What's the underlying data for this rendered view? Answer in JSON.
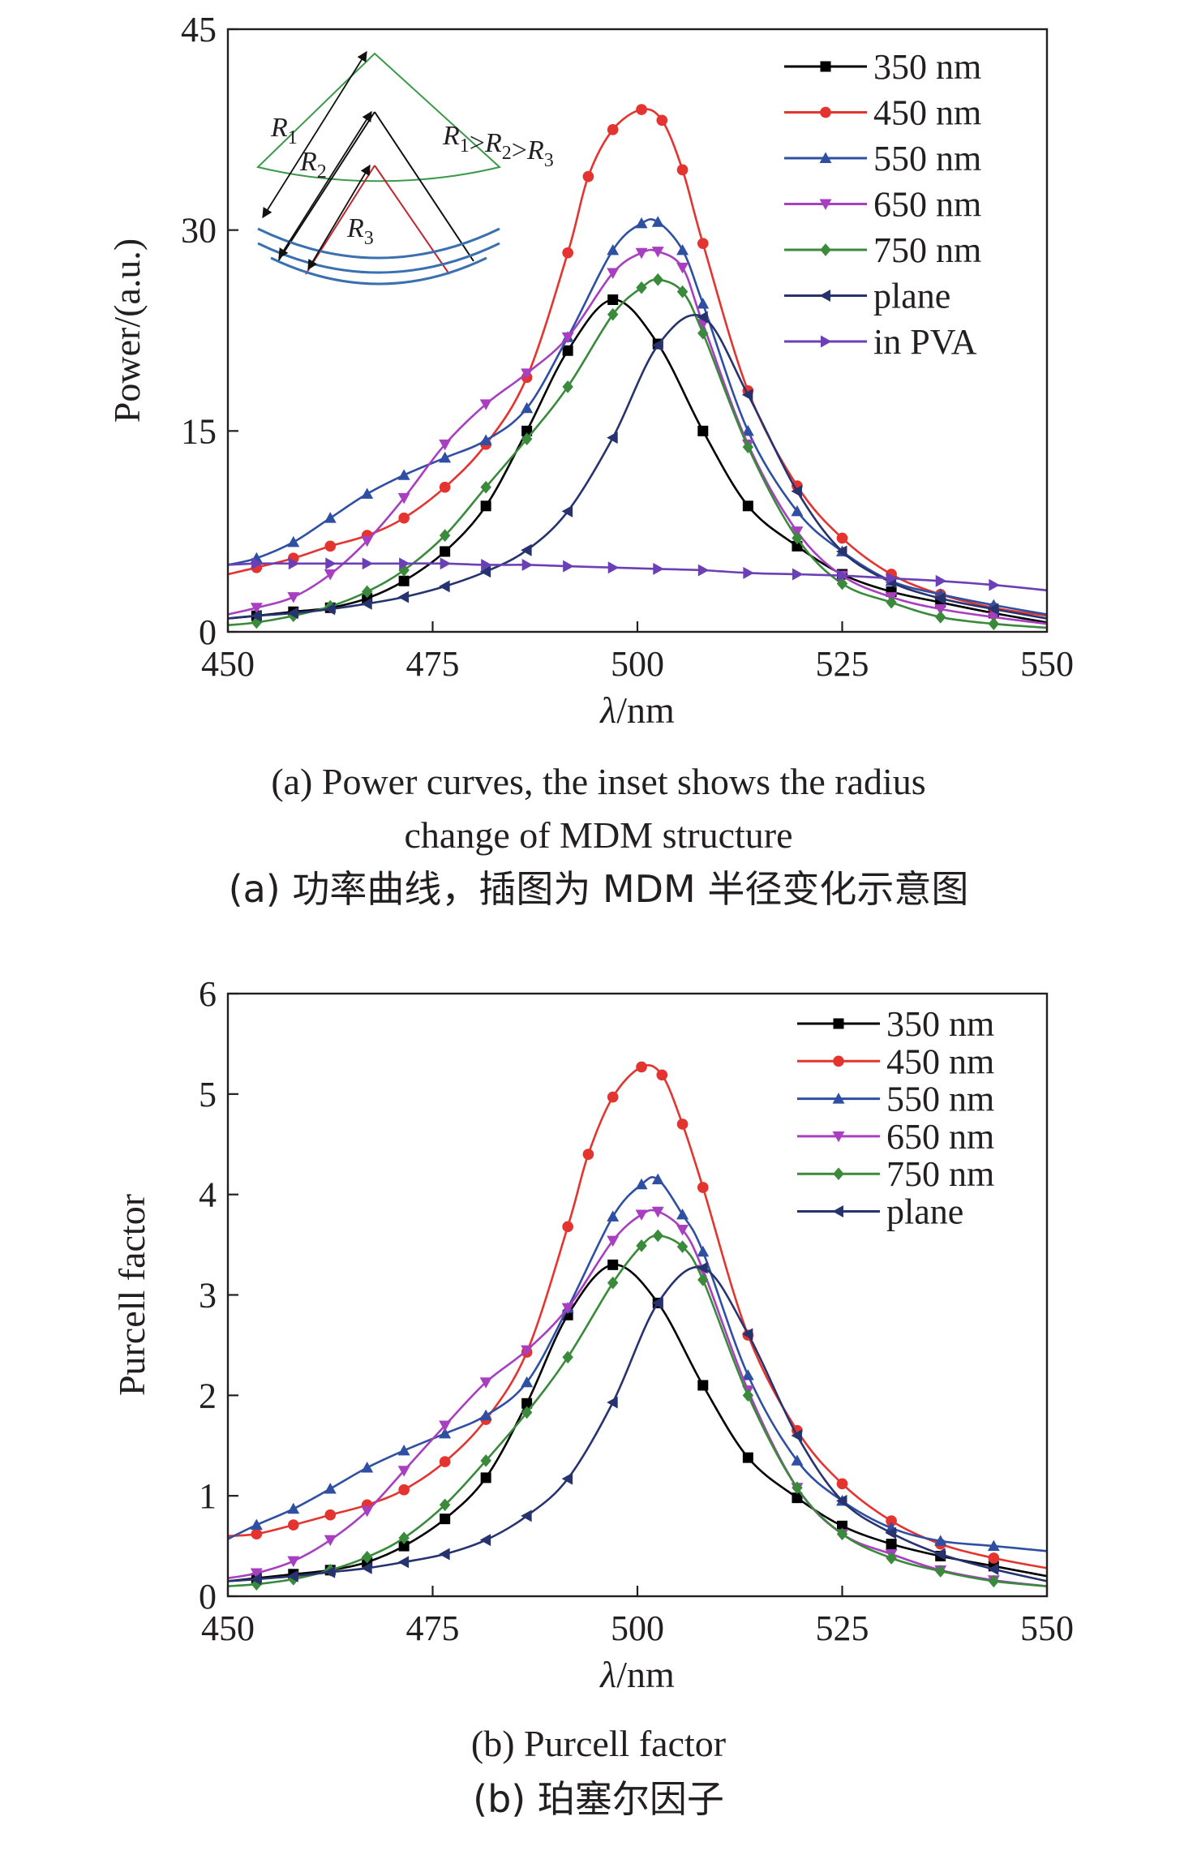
{
  "chart_data": [
    {
      "type": "line",
      "ylabel": "Power/(a.u.)",
      "xlabel_symbol": "λ",
      "xlabel_unit": "/nm",
      "xlim": [
        450,
        550
      ],
      "ylim": [
        0,
        45
      ],
      "xticks": [
        450,
        475,
        500,
        525,
        550
      ],
      "yticks": [
        0,
        15,
        30,
        45
      ],
      "legend_position": "top-right",
      "caption_en": [
        "(a) Power curves, the inset shows the radius",
        "change of MDM structure"
      ],
      "caption_zh": "(a) 功率曲线，插图为 MDM 半径变化示意图",
      "inset": {
        "labels": [
          {
            "sym": "R",
            "sub": "1"
          },
          {
            "sym": "R",
            "sub": "2"
          },
          {
            "sym": "R",
            "sub": "3"
          }
        ],
        "relation": [
          {
            "sym": "R",
            "sub": "1"
          },
          {
            "sep": ">"
          },
          {
            "sym": "R",
            "sub": "2"
          },
          {
            "sep": ">"
          },
          {
            "sym": "R",
            "sub": "3"
          }
        ]
      },
      "series": [
        {
          "name": "350 nm",
          "color": "#000000",
          "marker": "square",
          "x": [
            450,
            453.5,
            458,
            462.5,
            467,
            471.5,
            476.5,
            481.5,
            486.5,
            491.5,
            497,
            502.5,
            508,
            513.5,
            519.5,
            525,
            531,
            537,
            543.5,
            550
          ],
          "y": [
            1.0,
            1.2,
            1.5,
            1.8,
            2.5,
            3.8,
            6.0,
            9.4,
            15.0,
            21.0,
            24.8,
            21.5,
            15.0,
            9.4,
            6.4,
            4.3,
            3.0,
            2.2,
            1.4,
            0.7
          ]
        },
        {
          "name": "450 nm",
          "color": "#e3342f",
          "marker": "circle",
          "x": [
            450,
            453.5,
            458,
            462.5,
            467,
            471.5,
            476.5,
            481.5,
            486.5,
            491.5,
            494,
            497,
            500.5,
            503,
            505.5,
            508,
            513.5,
            519.5,
            525,
            531,
            537,
            543.5,
            550
          ],
          "y": [
            4.3,
            4.8,
            5.5,
            6.4,
            7.2,
            8.5,
            10.8,
            14.0,
            19.0,
            28.3,
            34.0,
            37.5,
            39.0,
            38.2,
            34.5,
            29.0,
            18.0,
            10.9,
            7.0,
            4.3,
            2.8,
            1.8,
            1.2
          ]
        },
        {
          "name": "550 nm",
          "color": "#2f4fa3",
          "marker": "triangle-up",
          "x": [
            450,
            453.5,
            458,
            462.5,
            467,
            471.5,
            476.5,
            481.5,
            486.5,
            491.5,
            497,
            500.5,
            502.5,
            505.5,
            508,
            513.5,
            519.5,
            525,
            531,
            537,
            543.5,
            550
          ],
          "y": [
            5.0,
            5.5,
            6.7,
            8.5,
            10.3,
            11.7,
            13.0,
            14.3,
            16.7,
            22.0,
            28.5,
            30.5,
            30.6,
            28.5,
            24.5,
            15.0,
            9.0,
            6.0,
            3.8,
            2.8,
            2.0,
            1.3
          ]
        },
        {
          "name": "650 nm",
          "color": "#a83ec0",
          "marker": "triangle-down",
          "x": [
            450,
            453.5,
            458,
            462.5,
            467,
            471.5,
            476.5,
            481.5,
            486.5,
            491.5,
            497,
            500.5,
            502.5,
            505.5,
            508,
            513.5,
            519.5,
            525,
            531,
            537,
            543.5,
            550
          ],
          "y": [
            1.3,
            1.8,
            2.6,
            4.3,
            6.8,
            10.0,
            14.0,
            17.0,
            19.3,
            22.0,
            26.8,
            28.3,
            28.4,
            27.2,
            23.0,
            14.0,
            7.5,
            4.2,
            2.6,
            1.7,
            1.1,
            0.6
          ]
        },
        {
          "name": "750 nm",
          "color": "#3a8a3c",
          "marker": "diamond",
          "x": [
            450,
            453.5,
            458,
            462.5,
            467,
            471.5,
            476.5,
            481.5,
            486.5,
            491.5,
            497,
            500.5,
            502.5,
            505.5,
            508,
            513.5,
            519.5,
            525,
            531,
            537,
            543.5,
            550
          ],
          "y": [
            0.5,
            0.7,
            1.2,
            1.9,
            3.0,
            4.6,
            7.2,
            10.8,
            14.4,
            18.3,
            23.7,
            25.7,
            26.3,
            25.4,
            22.3,
            13.8,
            7.0,
            3.6,
            2.2,
            1.1,
            0.6,
            0.3
          ]
        },
        {
          "name": "plane",
          "color": "#27336e",
          "marker": "triangle-left",
          "x": [
            450,
            453.5,
            458,
            462.5,
            467,
            471.5,
            476.5,
            481.5,
            486.5,
            491.5,
            497,
            502.5,
            508,
            513.5,
            519.5,
            525,
            531,
            537,
            543.5,
            550
          ],
          "y": [
            1.0,
            1.2,
            1.4,
            1.7,
            2.1,
            2.6,
            3.4,
            4.5,
            6.1,
            9.0,
            14.5,
            21.4,
            23.5,
            17.7,
            10.5,
            6.0,
            3.7,
            2.5,
            1.7,
            1.0
          ]
        },
        {
          "name": "in PVA",
          "color": "#6b3fb6",
          "marker": "triangle-right",
          "x": [
            450,
            453.5,
            458,
            462.5,
            467,
            471.5,
            476.5,
            481.5,
            486.5,
            491.5,
            497,
            502.5,
            508,
            513.5,
            519.5,
            525,
            531,
            537,
            543.5,
            550
          ],
          "y": [
            5.0,
            5.1,
            5.1,
            5.1,
            5.1,
            5.1,
            5.1,
            5.0,
            5.0,
            4.9,
            4.8,
            4.7,
            4.6,
            4.4,
            4.3,
            4.2,
            4.0,
            3.8,
            3.5,
            3.1
          ]
        }
      ]
    },
    {
      "type": "line",
      "ylabel": "Purcell factor",
      "xlabel_symbol": "λ",
      "xlabel_unit": "/nm",
      "xlim": [
        450,
        550
      ],
      "ylim": [
        0,
        6
      ],
      "xticks": [
        450,
        475,
        500,
        525,
        550
      ],
      "yticks": [
        0,
        1,
        2,
        3,
        4,
        5,
        6
      ],
      "legend_position": "top-right",
      "caption_en": [
        "(b) Purcell factor"
      ],
      "caption_zh": "(b) 珀塞尔因子",
      "series": [
        {
          "name": "350 nm",
          "color": "#000000",
          "marker": "square",
          "x": [
            450,
            453.5,
            458,
            462.5,
            467,
            471.5,
            476.5,
            481.5,
            486.5,
            491.5,
            497,
            502.5,
            508,
            513.5,
            519.5,
            525,
            531,
            537,
            543.5,
            550
          ],
          "y": [
            0.15,
            0.18,
            0.22,
            0.26,
            0.34,
            0.5,
            0.77,
            1.18,
            1.92,
            2.8,
            3.3,
            2.92,
            2.1,
            1.38,
            0.98,
            0.7,
            0.52,
            0.4,
            0.3,
            0.2
          ]
        },
        {
          "name": "450 nm",
          "color": "#e3342f",
          "marker": "circle",
          "x": [
            450,
            453.5,
            458,
            462.5,
            467,
            471.5,
            476.5,
            481.5,
            486.5,
            491.5,
            494,
            497,
            500.5,
            503,
            505.5,
            508,
            513.5,
            519.5,
            525,
            531,
            537,
            543.5,
            550
          ],
          "y": [
            0.6,
            0.62,
            0.71,
            0.81,
            0.91,
            1.06,
            1.34,
            1.76,
            2.43,
            3.68,
            4.4,
            4.97,
            5.27,
            5.19,
            4.7,
            4.07,
            2.6,
            1.65,
            1.12,
            0.75,
            0.52,
            0.38,
            0.28
          ]
        },
        {
          "name": "550 nm",
          "color": "#2f4fa3",
          "marker": "triangle-up",
          "x": [
            450,
            453.5,
            458,
            462.5,
            467,
            471.5,
            476.5,
            481.5,
            486.5,
            491.5,
            497,
            500.5,
            502.5,
            505.5,
            508,
            513.5,
            519.5,
            525,
            531,
            537,
            543.5,
            550
          ],
          "y": [
            0.57,
            0.71,
            0.87,
            1.07,
            1.28,
            1.45,
            1.62,
            1.8,
            2.13,
            2.87,
            3.78,
            4.1,
            4.15,
            3.8,
            3.43,
            2.2,
            1.35,
            0.95,
            0.68,
            0.55,
            0.5,
            0.45
          ]
        },
        {
          "name": "650 nm",
          "color": "#a83ec0",
          "marker": "triangle-down",
          "x": [
            450,
            453.5,
            458,
            462.5,
            467,
            471.5,
            476.5,
            481.5,
            486.5,
            491.5,
            497,
            500.5,
            502.5,
            505.5,
            508,
            513.5,
            519.5,
            525,
            531,
            537,
            543.5,
            550
          ],
          "y": [
            0.18,
            0.23,
            0.35,
            0.56,
            0.85,
            1.25,
            1.7,
            2.13,
            2.45,
            2.87,
            3.54,
            3.8,
            3.83,
            3.65,
            3.25,
            2.05,
            1.08,
            0.62,
            0.42,
            0.26,
            0.16,
            0.1
          ]
        },
        {
          "name": "750 nm",
          "color": "#3a8a3c",
          "marker": "diamond",
          "x": [
            450,
            453.5,
            458,
            462.5,
            467,
            471.5,
            476.5,
            481.5,
            486.5,
            491.5,
            497,
            500.5,
            502.5,
            505.5,
            508,
            513.5,
            519.5,
            525,
            531,
            537,
            543.5,
            550
          ],
          "y": [
            0.1,
            0.12,
            0.17,
            0.26,
            0.39,
            0.58,
            0.91,
            1.35,
            1.83,
            2.38,
            3.12,
            3.49,
            3.59,
            3.48,
            3.15,
            2.0,
            1.08,
            0.62,
            0.38,
            0.25,
            0.15,
            0.1
          ]
        },
        {
          "name": "plane",
          "color": "#27336e",
          "marker": "triangle-left",
          "x": [
            450,
            453.5,
            458,
            462.5,
            467,
            471.5,
            476.5,
            481.5,
            486.5,
            491.5,
            497,
            502.5,
            508,
            513.5,
            519.5,
            525,
            531,
            537,
            543.5,
            550
          ],
          "y": [
            0.15,
            0.17,
            0.2,
            0.24,
            0.28,
            0.34,
            0.42,
            0.56,
            0.8,
            1.17,
            1.93,
            2.92,
            3.27,
            2.61,
            1.6,
            0.95,
            0.63,
            0.42,
            0.27,
            0.15
          ]
        }
      ]
    }
  ]
}
